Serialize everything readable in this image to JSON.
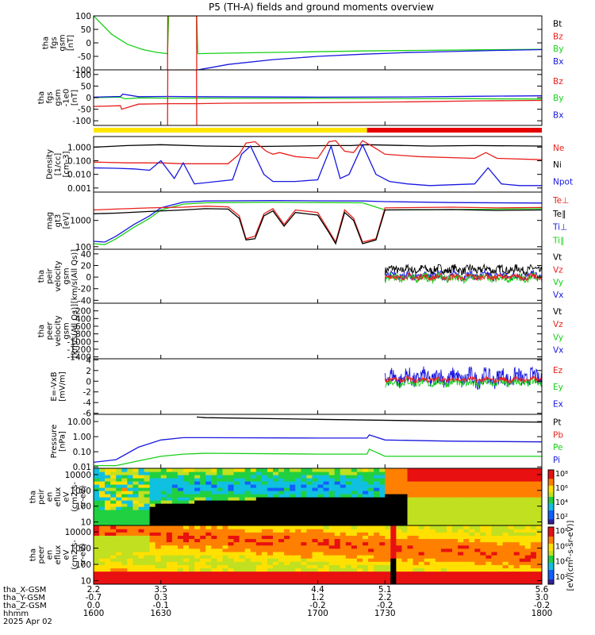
{
  "title": "P5 (TH-A) fields and ground moments overview",
  "colors": {
    "black": "#000000",
    "red": "#e8201c",
    "green": "#18d018",
    "blue": "#1818e0",
    "yellow": "#ffe600",
    "barred": "#e60000"
  },
  "chart_data": [
    {
      "id": "fgs",
      "type": "line",
      "ylabel": [
        "tha",
        "fgs",
        "gsm",
        "[nT]"
      ],
      "ylim": [
        -100,
        100
      ],
      "yticks": [
        100,
        50,
        0,
        -50,
        -100
      ],
      "legend": [
        {
          "name": "Bt",
          "color": "black"
        },
        {
          "name": "Bz",
          "color": "red"
        },
        {
          "name": "By",
          "color": "green"
        },
        {
          "name": "Bx",
          "color": "blue"
        }
      ],
      "series": [
        {
          "name": "By",
          "color": "green",
          "x": [
            1600,
            1608,
            1615,
            1622,
            1628,
            1633,
            1633.5,
            1640,
            1646,
            1646.5,
            1660,
            1690,
            1720,
            1745,
            1770,
            1800
          ],
          "y": [
            100,
            32,
            -5,
            -25,
            -35,
            -40,
            100,
            100,
            100,
            -40,
            -38,
            -34,
            -30,
            -28,
            -26,
            -24
          ]
        },
        {
          "name": "Bx",
          "color": "blue",
          "x": [
            1646.5,
            1652,
            1660,
            1680,
            1700,
            1720,
            1740,
            1760,
            1780,
            1800
          ],
          "y": [
            -100,
            -92,
            -80,
            -62,
            -50,
            -42,
            -36,
            -32,
            -28,
            -25
          ]
        },
        {
          "name": "Bz",
          "color": "red",
          "x": [
            1633,
            1633.1,
            1645.9,
            1646
          ],
          "y": [
            -100,
            100,
            100,
            -100
          ]
        }
      ]
    },
    {
      "id": "fgs_m1",
      "type": "line",
      "ylabel": [
        "tha",
        "fgs",
        "gsm",
        "-1e0",
        "[nT]"
      ],
      "ylim": [
        -120,
        120
      ],
      "yticks": [
        100,
        50,
        0,
        -50,
        -100
      ],
      "legend": [
        {
          "name": "Bz",
          "color": "red"
        },
        {
          "name": "By",
          "color": "green"
        },
        {
          "name": "Bx",
          "color": "blue"
        }
      ],
      "series": [
        {
          "name": "Bz",
          "color": "red",
          "x": [
            1600,
            1612,
            1612.5,
            1620,
            1633,
            1646,
            1660,
            1700,
            1740,
            1770,
            1800
          ],
          "y": [
            -38,
            -35,
            -50,
            -28,
            -26,
            -26,
            -24,
            -22,
            -18,
            -14,
            -12
          ]
        },
        {
          "name": "By",
          "color": "green",
          "x": [
            1600,
            1612,
            1614,
            1620,
            1633,
            1646,
            1700,
            1760,
            1800
          ],
          "y": [
            0,
            2,
            -5,
            -1,
            -2,
            -2,
            -3,
            -4,
            -6
          ]
        },
        {
          "name": "Bx",
          "color": "blue",
          "x": [
            1600,
            1612,
            1613,
            1620,
            1633,
            1646,
            1700,
            1740,
            1770,
            1800
          ],
          "y": [
            2,
            5,
            15,
            4,
            5,
            4,
            2,
            3,
            6,
            8
          ]
        },
        {
          "name": "Bz",
          "color": "red",
          "x": [
            1633,
            1633.1,
            1645.9,
            1646
          ],
          "y": [
            -120,
            120,
            120,
            -120
          ]
        }
      ]
    },
    {
      "id": "density",
      "type": "line",
      "ylabel": [
        "Density",
        "[1/cc]",
        "[cm-3]"
      ],
      "yscale": "log",
      "ylim": [
        0.0005,
        6
      ],
      "yticklabels": [
        "1.000",
        "0.100",
        "0.010",
        "0.001"
      ],
      "yticks": [
        1,
        0.1,
        0.01,
        0.001
      ],
      "legend": [
        {
          "name": "Ne",
          "color": "red"
        },
        {
          "name": "Ni",
          "color": "black"
        },
        {
          "name": "Npot",
          "color": "blue"
        }
      ],
      "series": [
        {
          "name": "Ni",
          "color": "black",
          "x": [
            1600,
            1615,
            1630,
            1650,
            1670,
            1690,
            1705,
            1715,
            1722,
            1730,
            1750,
            1770,
            1800
          ],
          "y": [
            1.0,
            1.3,
            1.5,
            1.2,
            1.1,
            1.2,
            1.3,
            1.3,
            1.5,
            1.4,
            1.2,
            1.3,
            1.2
          ]
        },
        {
          "name": "Ne",
          "color": "red",
          "x": [
            1600,
            1615,
            1630,
            1640,
            1650,
            1660,
            1665,
            1668,
            1672,
            1677,
            1680,
            1683,
            1690,
            1700,
            1705,
            1708,
            1712,
            1716,
            1720,
            1725,
            1730,
            1745,
            1770,
            1775,
            1780,
            1800
          ],
          "y": [
            0.08,
            0.07,
            0.07,
            0.06,
            0.06,
            0.06,
            0.3,
            2.0,
            2.5,
            0.5,
            0.3,
            0.4,
            0.2,
            0.15,
            2.5,
            3.0,
            0.5,
            0.4,
            3.0,
            1.0,
            0.3,
            0.2,
            0.15,
            0.4,
            0.15,
            0.12
          ]
        },
        {
          "name": "Npot",
          "color": "blue",
          "x": [
            1600,
            1610,
            1618,
            1625,
            1630,
            1636,
            1640,
            1645,
            1655,
            1662,
            1666,
            1670,
            1676,
            1680,
            1690,
            1700,
            1706,
            1710,
            1714,
            1720,
            1726,
            1732,
            1740,
            1750,
            1770,
            1776,
            1782,
            1790,
            1800
          ],
          "y": [
            0.03,
            0.028,
            0.025,
            0.02,
            0.1,
            0.005,
            0.07,
            0.002,
            0.003,
            0.004,
            0.3,
            1.2,
            0.01,
            0.003,
            0.003,
            0.004,
            1.2,
            0.005,
            0.01,
            1.5,
            0.01,
            0.003,
            0.002,
            0.0015,
            0.002,
            0.03,
            0.002,
            0.0015,
            0.0015
          ]
        }
      ]
    },
    {
      "id": "temperature",
      "type": "line",
      "ylabel": [
        "mag",
        "gt3",
        "[eV]"
      ],
      "yscale": "log",
      "ylim": [
        80,
        12000
      ],
      "yticklabels": [
        "1000",
        "100"
      ],
      "yticks": [
        1000,
        100
      ],
      "legend": [
        {
          "name": "Te⊥",
          "color": "red"
        },
        {
          "name": "Te∥",
          "color": "black"
        },
        {
          "name": "Ti⊥",
          "color": "blue"
        },
        {
          "name": "Ti∥",
          "color": "green"
        }
      ],
      "series": [
        {
          "name": "Ti⊥",
          "color": "blue",
          "x": [
            1600,
            1605,
            1610,
            1618,
            1625,
            1630,
            1640,
            1650,
            1660,
            1680,
            1700,
            1720,
            1730,
            1760,
            1800
          ],
          "y": [
            160,
            150,
            250,
            700,
            1500,
            3000,
            5000,
            5500,
            5600,
            5700,
            5600,
            5500,
            5200,
            4800,
            4600
          ]
        },
        {
          "name": "Ti∥",
          "color": "green",
          "x": [
            1600,
            1605,
            1610,
            1618,
            1625,
            1630,
            1640,
            1650,
            1660,
            1680,
            1700,
            1720,
            1730,
            1760,
            1800
          ],
          "y": [
            130,
            120,
            200,
            550,
            1200,
            2500,
            4200,
            4700,
            4800,
            4900,
            4800,
            4700,
            2500,
            2600,
            2800
          ]
        },
        {
          "name": "Te⊥",
          "color": "red",
          "x": [
            1600,
            1610,
            1625,
            1640,
            1650,
            1660,
            1665,
            1668,
            1672,
            1676,
            1680,
            1685,
            1690,
            1700,
            1705,
            1708,
            1712,
            1716,
            1720,
            1726,
            1730,
            1760,
            1780,
            1800
          ],
          "y": [
            2500,
            2700,
            3000,
            3200,
            3500,
            3300,
            1500,
            200,
            250,
            1800,
            2800,
            700,
            2500,
            2000,
            400,
            150,
            2500,
            1200,
            150,
            200,
            3000,
            3200,
            3000,
            3100
          ]
        },
        {
          "name": "Te∥",
          "color": "black",
          "x": [
            1600,
            1610,
            1625,
            1640,
            1650,
            1660,
            1665,
            1668,
            1672,
            1676,
            1680,
            1685,
            1690,
            1700,
            1705,
            1708,
            1712,
            1716,
            1720,
            1726,
            1730,
            1760,
            1780,
            1800
          ],
          "y": [
            1800,
            1900,
            2200,
            2500,
            2800,
            2700,
            1200,
            180,
            200,
            1500,
            2300,
            600,
            2000,
            1600,
            350,
            130,
            2000,
            1000,
            130,
            180,
            2500,
            2600,
            2400,
            2500
          ]
        }
      ]
    },
    {
      "id": "peir_velocity",
      "type": "line",
      "ylabel": [
        "tha",
        "peir",
        "velocity",
        "gsm",
        "[km/s(All Qs)]"
      ],
      "ylim": [
        -45,
        48
      ],
      "yticks": [
        40,
        20,
        0,
        -20,
        -40
      ],
      "legend": [
        {
          "name": "Vt",
          "color": "black"
        },
        {
          "name": "Vz",
          "color": "red"
        },
        {
          "name": "Vy",
          "color": "green"
        },
        {
          "name": "Vx",
          "color": "blue"
        }
      ],
      "noise": [
        {
          "name": "Vt",
          "color": "black",
          "xstart": 1730,
          "xend": 1800,
          "mean": 13,
          "amp": 14
        },
        {
          "name": "Vx",
          "color": "blue",
          "xstart": 1730,
          "xend": 1800,
          "mean": 2,
          "amp": 14
        },
        {
          "name": "Vy",
          "color": "green",
          "xstart": 1730,
          "xend": 1800,
          "mean": -1,
          "amp": 14
        },
        {
          "name": "Vz",
          "color": "red",
          "xstart": 1730,
          "xend": 1800,
          "mean": 0,
          "amp": 10
        }
      ]
    },
    {
      "id": "peer_velocity",
      "type": "line",
      "ylabel": [
        "tha",
        "peer",
        "velocity",
        "gsm",
        "[km/s(All Qs)]"
      ],
      "ylim": [
        -1450,
        0
      ],
      "yticks": [
        -200,
        -400,
        -600,
        -800,
        -1000,
        -1200,
        -1400
      ],
      "legend": [
        {
          "name": "Vt",
          "color": "black"
        },
        {
          "name": "Vz",
          "color": "red"
        },
        {
          "name": "Vy",
          "color": "green"
        },
        {
          "name": "Vx",
          "color": "blue"
        }
      ]
    },
    {
      "id": "efield",
      "type": "line",
      "ylabel": [
        "E=-VxB",
        "[mV/m]"
      ],
      "ylim": [
        -6.2,
        4.2
      ],
      "yticks": [
        4,
        2,
        0,
        -2,
        -4,
        -6
      ],
      "legend": [
        {
          "name": "Ez",
          "color": "red"
        },
        {
          "name": "Ey",
          "color": "green"
        },
        {
          "name": "Ex",
          "color": "blue"
        }
      ],
      "noise": [
        {
          "name": "Ex",
          "color": "blue",
          "xstart": 1730,
          "xend": 1800,
          "mean": 0.6,
          "amp": 3.2
        },
        {
          "name": "Ey",
          "color": "green",
          "xstart": 1730,
          "xend": 1800,
          "mean": -0.3,
          "amp": 1.3
        },
        {
          "name": "Ez",
          "color": "red",
          "xstart": 1730,
          "xend": 1800,
          "mean": 0.3,
          "amp": 0.9
        }
      ]
    },
    {
      "id": "pressure",
      "type": "line",
      "ylabel": [
        "Pressure",
        "[nPa]"
      ],
      "yscale": "log",
      "ylim": [
        0.008,
        30
      ],
      "yticklabels": [
        "10.00",
        "1.00",
        "0.10",
        "0.01"
      ],
      "yticks": [
        10,
        1,
        0.1,
        0.01
      ],
      "legend": [
        {
          "name": "Pt",
          "color": "black"
        },
        {
          "name": "Pb",
          "color": "red"
        },
        {
          "name": "Pe",
          "color": "green"
        },
        {
          "name": "Pi",
          "color": "blue"
        }
      ],
      "series": [
        {
          "name": "Pt",
          "color": "black",
          "x": [
            1646,
            1650,
            1700,
            1750,
            1800
          ],
          "y": [
            20,
            18,
            14,
            11,
            9
          ]
        },
        {
          "name": "Pi",
          "color": "blue",
          "x": [
            1600,
            1610,
            1620,
            1630,
            1640,
            1650,
            1700,
            1722,
            1723,
            1730,
            1760,
            1800
          ],
          "y": [
            0.02,
            0.03,
            0.2,
            0.6,
            0.85,
            0.85,
            0.8,
            0.8,
            1.3,
            0.6,
            0.5,
            0.45
          ]
        },
        {
          "name": "Pe",
          "color": "green",
          "x": [
            1600,
            1610,
            1620,
            1630,
            1640,
            1650,
            1700,
            1722,
            1723,
            1730,
            1760,
            1800
          ],
          "y": [
            0.012,
            0.012,
            0.025,
            0.05,
            0.07,
            0.08,
            0.07,
            0.07,
            0.15,
            0.05,
            0.05,
            0.05
          ]
        }
      ]
    },
    {
      "id": "peir_spec",
      "type": "heatmap",
      "ylabel": [
        "tha",
        "peir",
        "en",
        "eflux",
        "eV",
        "(cm2-s-",
        "sr-eV)"
      ],
      "yscale": "log",
      "ylim": [
        6,
        25000
      ],
      "yticks": [
        10000,
        1000,
        100,
        10
      ],
      "yticklabels": [
        "10000",
        "1000",
        "100",
        "10"
      ]
    },
    {
      "id": "peer_spec",
      "type": "heatmap",
      "ylabel": [
        "tha",
        "peer",
        "en",
        "eflux",
        "eV",
        "(cm2-s-",
        "sr-eV)"
      ],
      "yscale": "log",
      "ylim": [
        6,
        25000
      ],
      "yticks": [
        10000,
        1000,
        100,
        10
      ],
      "yticklabels": [
        "10000",
        "1000",
        "100",
        "10"
      ]
    }
  ],
  "colorbar": {
    "ticks": [
      "10⁸",
      "10⁶",
      "10⁴",
      "10²",
      "10⁸",
      "10⁶",
      "10⁴",
      "10²"
    ],
    "label": "[eV/(cm²-s-sr-eV)]"
  },
  "state_bar": {
    "yellow_until": 1722,
    "red_from": 1722
  },
  "xaxis": {
    "xlim": [
      1600,
      1800
    ],
    "ticks": [
      1600,
      1630,
      1700,
      1730,
      1800
    ],
    "rows": [
      {
        "label": "tha_X-GSM",
        "values": [
          "2.2",
          "3.5",
          "4.4",
          "5.1",
          "5.6"
        ]
      },
      {
        "label": "tha_Y-GSM",
        "values": [
          "-0.7",
          "0.3",
          "1.2",
          "2.2",
          "3.0"
        ]
      },
      {
        "label": "tha_Z-GSM",
        "values": [
          "0.0",
          "-0.1",
          "-0.2",
          "-0.2",
          "-0.2"
        ]
      },
      {
        "label": "hhmm",
        "values": [
          "1600",
          "1630",
          "1700",
          "1730",
          "1800"
        ]
      }
    ],
    "date": "2025 Apr 02"
  }
}
